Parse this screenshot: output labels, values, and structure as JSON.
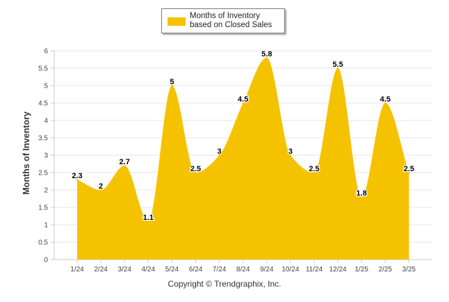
{
  "chart_data": {
    "type": "area",
    "title": "",
    "xlabel": "",
    "ylabel": "Months of Inventory",
    "categories": [
      "1/24",
      "2/24",
      "3/24",
      "4/24",
      "5/24",
      "6/24",
      "7/24",
      "8/24",
      "9/24",
      "10/24",
      "11/24",
      "12/24",
      "1/25",
      "2/25",
      "3/25"
    ],
    "series": [
      {
        "name": "Months of Inventory based on Closed Sales",
        "values": [
          2.3,
          2,
          2.7,
          1.1,
          5,
          2.5,
          3,
          4.5,
          5.8,
          3,
          2.5,
          5.5,
          1.8,
          4.5,
          2.5
        ],
        "labels": [
          "2.3",
          "2",
          "2.7",
          "1.1",
          "5",
          "2.5",
          "3",
          "4.5",
          "5.8",
          "3",
          "2.5",
          "5.5",
          "1.8",
          "4.5",
          "2.5"
        ],
        "color": "#F5C200"
      }
    ],
    "ylim": [
      0,
      6
    ],
    "yticks": [
      "0",
      "0.5",
      "1",
      "1.5",
      "2",
      "2.5",
      "3",
      "3.5",
      "4",
      "4.5",
      "5",
      "5.5",
      "6"
    ],
    "grid": true,
    "legend_position": "top-center"
  },
  "legend": {
    "label": "Months of Inventory based on Closed Sales"
  },
  "footer": {
    "copyright": "Copyright © Trendgraphix, Inc."
  },
  "colors": {
    "series": "#F5C200",
    "grid": "#e6e6e6",
    "axis": "#c8c8c8"
  }
}
